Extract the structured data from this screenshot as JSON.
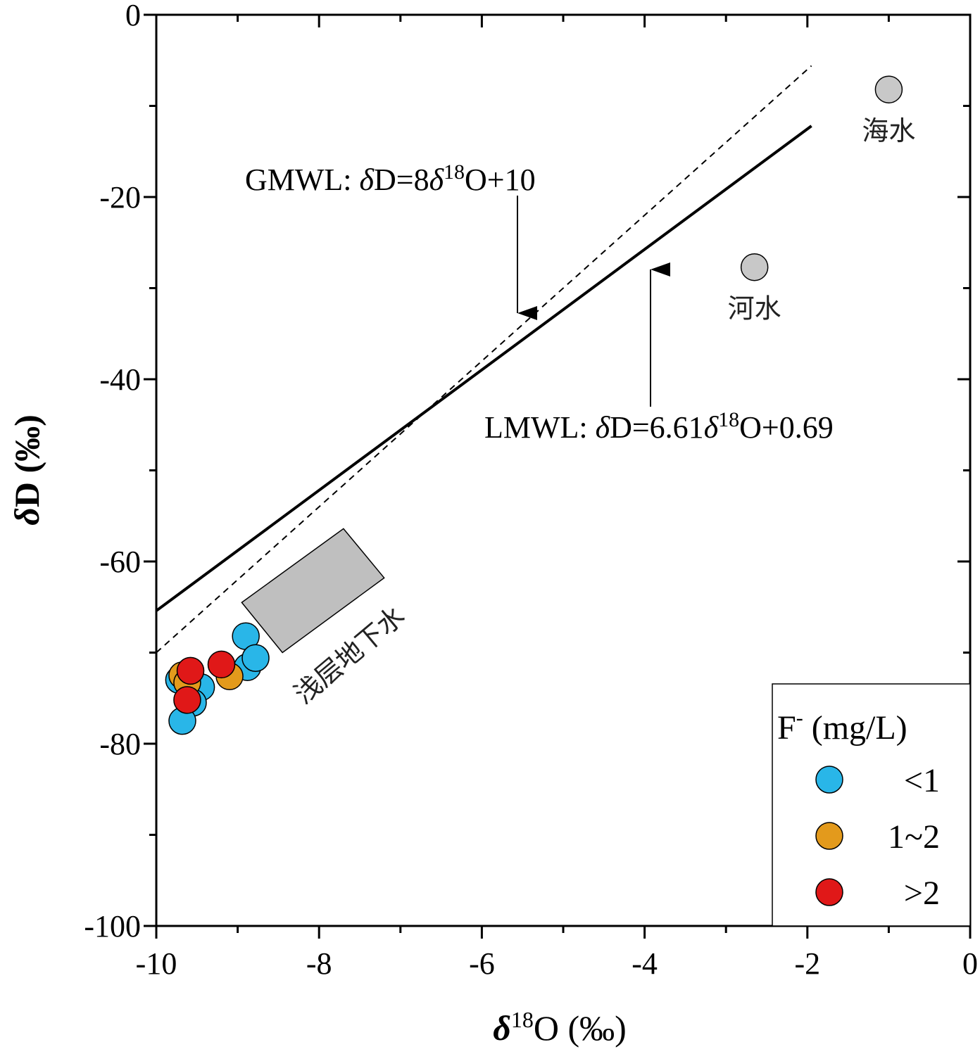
{
  "chart_data": {
    "type": "scatter",
    "xlabel": "δ18O (‰)",
    "ylabel": "δD (‰)",
    "xlim": [
      -10,
      0
    ],
    "ylim": [
      -100,
      0
    ],
    "x_ticks": [
      -10,
      -8,
      -6,
      -4,
      -2,
      0
    ],
    "y_ticks": [
      0,
      -20,
      -40,
      -60,
      -80,
      -100
    ],
    "x_tick_labels": [
      "-10",
      "-8",
      "-6",
      "-4",
      "-2",
      "0"
    ],
    "y_tick_labels": [
      "0",
      "-20",
      "-40",
      "-60",
      "-80",
      "-100"
    ],
    "grid": false,
    "lines": [
      {
        "name": "GMWL",
        "label": "GMWL: δD=8δ18O+10",
        "slope": 8,
        "intercept": 10,
        "x_range": [
          -10,
          -1.95
        ],
        "style": "dashed"
      },
      {
        "name": "LMWL",
        "label": "LMWL: δD=6.61δ18O+0.69",
        "slope": 6.61,
        "intercept": 0.69,
        "x_range": [
          -10,
          -1.95
        ],
        "style": "solid"
      }
    ],
    "annotations": [
      {
        "text": "海水",
        "x": -1.0,
        "y": -8.2
      },
      {
        "text": "河水",
        "x": -2.65,
        "y": -27.7
      },
      {
        "text": "浅层地下水",
        "region": [
          [
            -8.95,
            -64.5
          ],
          [
            -7.7,
            -56.4
          ],
          [
            -7.2,
            -61.8
          ],
          [
            -8.45,
            -70.0
          ]
        ]
      }
    ],
    "reference_points": [
      {
        "label": "海水",
        "x": -1.0,
        "y": -8.2
      },
      {
        "label": "河水",
        "x": -2.65,
        "y": -27.7
      }
    ],
    "legend": {
      "title": "F- (mg/L)",
      "position": "bottom-right"
    },
    "series": [
      {
        "name": "<1",
        "color": "#29b6e8",
        "points": [
          {
            "x": -9.72,
            "y": -73.0
          },
          {
            "x": -9.45,
            "y": -73.8
          },
          {
            "x": -9.55,
            "y": -75.5
          },
          {
            "x": -9.68,
            "y": -77.5
          },
          {
            "x": -8.88,
            "y": -71.6
          },
          {
            "x": -8.9,
            "y": -68.2
          },
          {
            "x": -8.78,
            "y": -70.6
          }
        ]
      },
      {
        "name": "1~2",
        "color": "#e39a1c",
        "points": [
          {
            "x": -9.68,
            "y": -72.5
          },
          {
            "x": -9.62,
            "y": -73.3
          },
          {
            "x": -9.1,
            "y": -72.6
          }
        ]
      },
      {
        "name": ">2",
        "color": "#e01818",
        "points": [
          {
            "x": -9.58,
            "y": -72.0
          },
          {
            "x": -9.2,
            "y": -71.3
          },
          {
            "x": -9.62,
            "y": -75.2
          }
        ]
      }
    ]
  }
}
